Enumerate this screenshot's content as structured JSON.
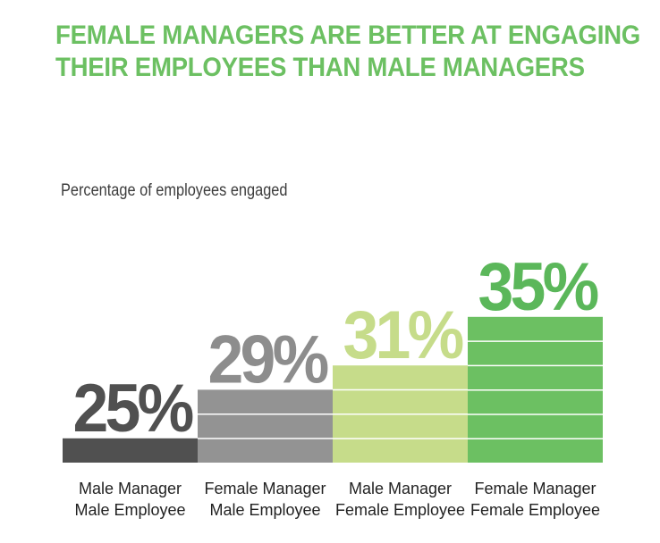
{
  "title_lines": [
    "FEMALE MANAGERS ARE BETTER AT ENGAGING",
    "THEIR EMPLOYEES THAN MALE MANAGERS"
  ],
  "subtitle": "Percentage of employees engaged",
  "colors": {
    "title": "#6cc062",
    "bar_male_male": "#505050",
    "bar_female_male": "#939393",
    "bar_male_female": "#c6dc8a",
    "bar_female_female": "#6cc062",
    "label_male_male": "#505050",
    "label_female_male": "#8d8d8d",
    "label_male_female": "#c6dc8a",
    "label_female_female": "#5bb75a"
  },
  "chart_data": {
    "type": "bar",
    "title": "FEMALE MANAGERS ARE BETTER AT ENGAGING THEIR EMPLOYEES THAN MALE MANAGERS",
    "ylabel": "Percentage of employees engaged",
    "categories": [
      [
        "Male Manager",
        "Male Employee"
      ],
      [
        "Female Manager",
        "Male Employee"
      ],
      [
        "Male Manager",
        "Female Employee"
      ],
      [
        "Female Manager",
        "Female Employee"
      ]
    ],
    "values": [
      25,
      29,
      31,
      35
    ],
    "value_labels": [
      "25%",
      "29%",
      "31%",
      "35%"
    ],
    "unit": "%",
    "grid": false,
    "legend": "none"
  }
}
